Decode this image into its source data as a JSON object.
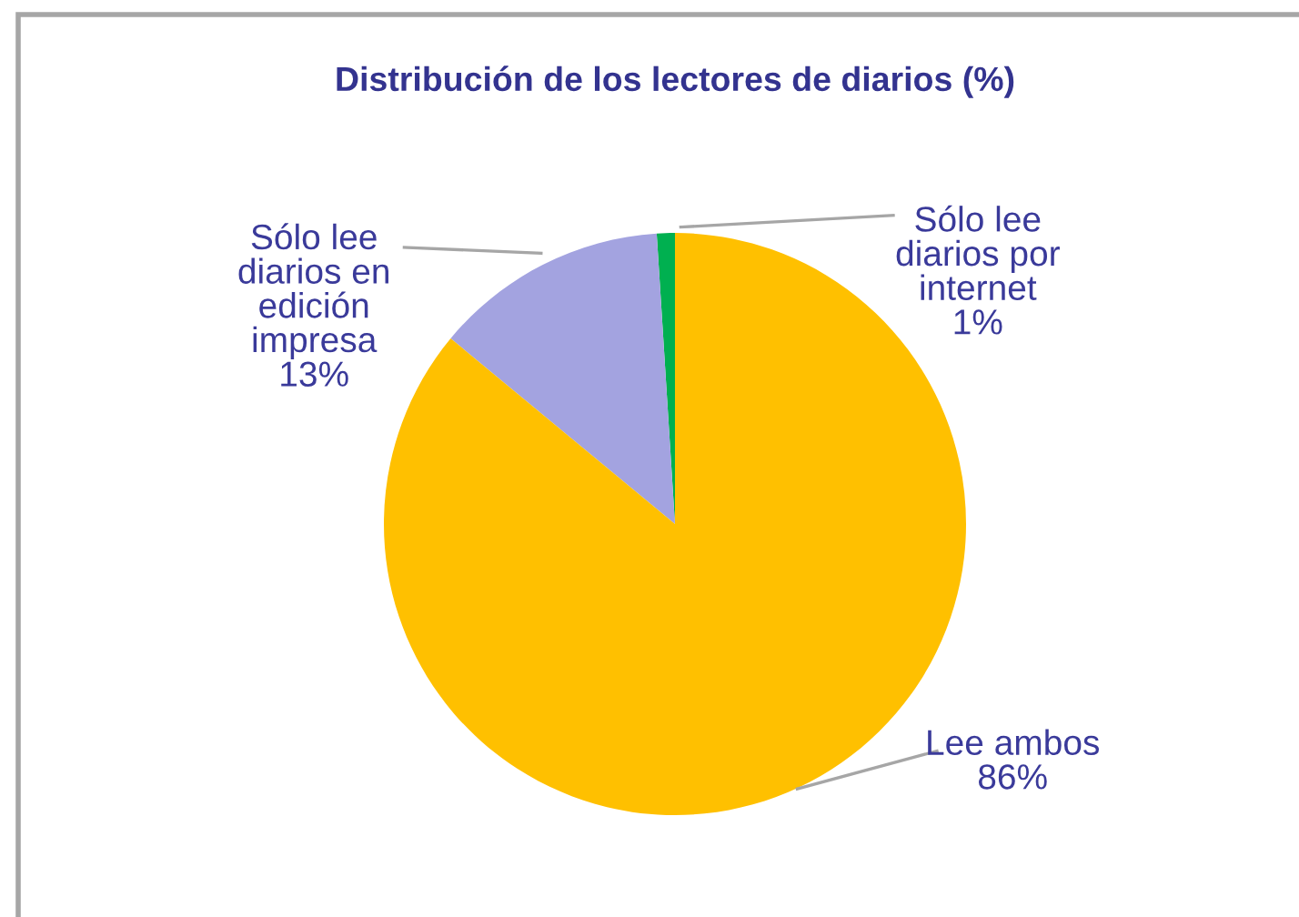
{
  "chart_data": {
    "type": "pie",
    "title": "Distribución de los lectores de diarios (%)",
    "categories": [
      "Sólo lee\ndiarios por\ninternet",
      "Sólo lee\ndiarios en\nedición\nimpresa",
      "Lee ambos"
    ],
    "values": [
      1,
      13,
      86
    ],
    "colors": [
      "#00b050",
      "#a3a3e0",
      "#ffc000"
    ],
    "value_labels": [
      "1%",
      "13%",
      "86%"
    ]
  }
}
